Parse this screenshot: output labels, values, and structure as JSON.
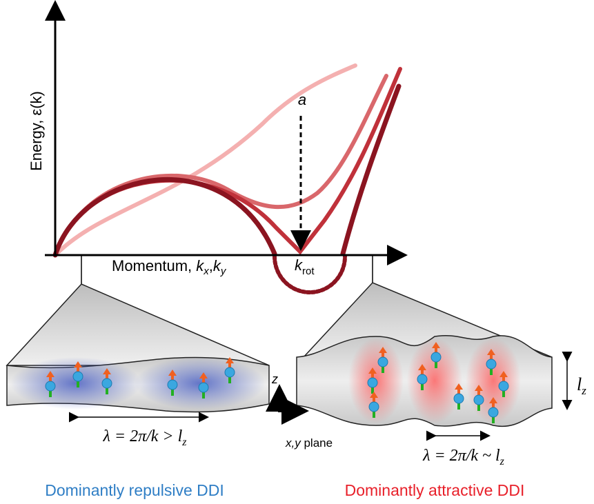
{
  "y_axis_label": "Energy, ε(k)",
  "x_axis_label": {
    "prefix": "Momentum, ",
    "k1": "k",
    "sub1": "x",
    "comma": ",",
    "k2": "k",
    "sub2": "y"
  },
  "k_rot": {
    "k": "k",
    "sub": "rot"
  },
  "arrow_label": "a",
  "left_panel": {
    "wavelength": {
      "main": "λ = 2π/k > l",
      "sub": "z"
    },
    "caption": "Dominantly repulsive DDI"
  },
  "right_panel": {
    "wavelength": {
      "main": "λ = 2π/k ~ l",
      "sub": "z"
    },
    "thickness": {
      "l": "l",
      "sub": "z"
    },
    "caption": "Dominantly attractive DDI"
  },
  "axes_inset": {
    "z": "z",
    "xy": "x,y",
    "plane": " plane"
  }
}
